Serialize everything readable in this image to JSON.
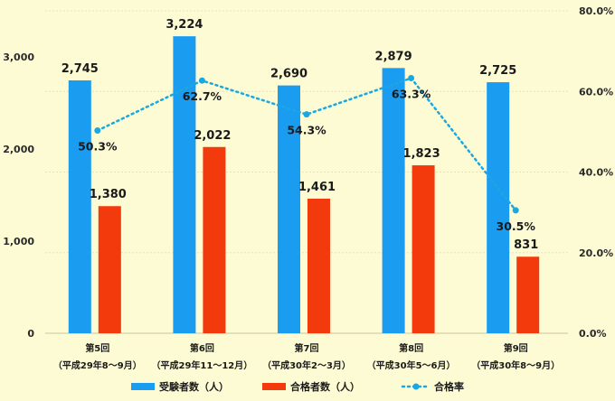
{
  "chart_data": {
    "type": "bar",
    "categories": [
      {
        "line1": "第5回",
        "line2": "（平成29年8～9月）"
      },
      {
        "line1": "第6回",
        "line2": "（平成29年11～12月）"
      },
      {
        "line1": "第7回",
        "line2": "（平成30年2～3月）"
      },
      {
        "line1": "第8回",
        "line2": "（平成30年5～6月）"
      },
      {
        "line1": "第9回",
        "line2": "（平成30年8～9月）"
      }
    ],
    "series": [
      {
        "name": "受験者数（人）",
        "axis": "left",
        "values": [
          2745,
          3224,
          2690,
          2879,
          2725
        ],
        "labels": [
          "2,745",
          "3,224",
          "2,690",
          "2,879",
          "2,725"
        ],
        "color": "#1a9cf0"
      },
      {
        "name": "合格者数（人）",
        "axis": "left",
        "values": [
          1380,
          2022,
          1461,
          1823,
          831
        ],
        "labels": [
          "1,380",
          "2,022",
          "1,461",
          "1,823",
          "831"
        ],
        "color": "#f23a0c"
      },
      {
        "name": "合格率",
        "axis": "right",
        "type": "line",
        "values": [
          50.3,
          62.7,
          54.3,
          63.3,
          30.5
        ],
        "labels": [
          "50.3%",
          "62.7%",
          "54.3%",
          "63.3%",
          "30.5%"
        ],
        "color": "#1aa8e0"
      }
    ],
    "left_axis": {
      "ylim": [
        0,
        3000
      ],
      "ticks": [
        0,
        1000,
        2000,
        3000
      ],
      "tick_labels": [
        "0",
        "1,000",
        "2,000",
        "3,000"
      ]
    },
    "right_axis": {
      "ylim": [
        0,
        80
      ],
      "ticks": [
        0,
        20,
        40,
        60,
        80
      ],
      "tick_labels": [
        "0.0%",
        "20.0%",
        "40.0%",
        "60.0%",
        "80.0%"
      ]
    },
    "grid": true,
    "legend_position": "bottom"
  }
}
